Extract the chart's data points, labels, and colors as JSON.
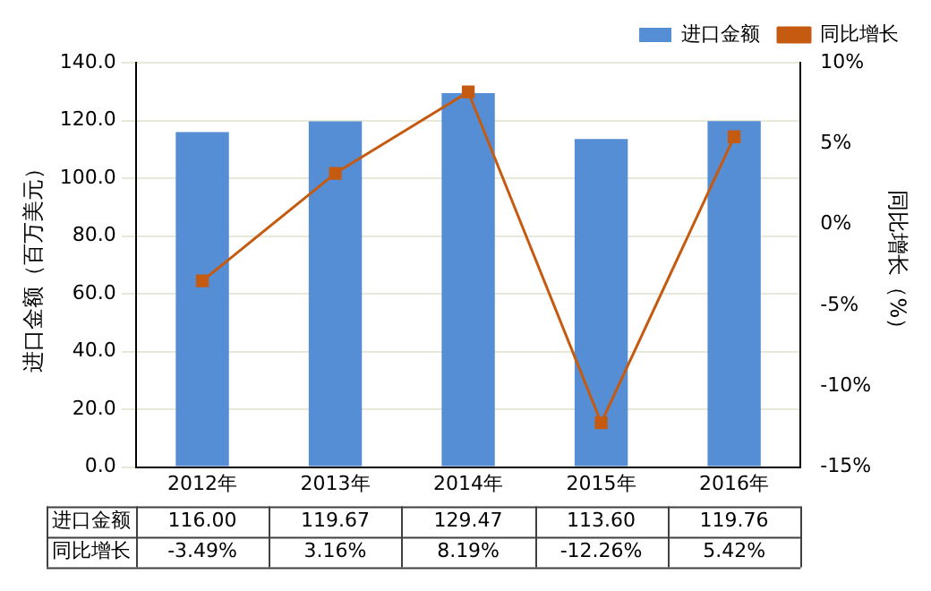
{
  "chart_data": {
    "type": "bar",
    "ylabel": "进口金额（百万美元）",
    "y2label": "同比增长（%）",
    "categories": [
      "2012年",
      "2013年",
      "2014年",
      "2015年",
      "2016年"
    ],
    "series": [
      {
        "name": "进口金额",
        "color": "#558ed5",
        "values": [
          116.0,
          119.67,
          129.47,
          113.6,
          119.76
        ],
        "value_labels": [
          "116.00",
          "119.67",
          "129.47",
          "113.60",
          "119.76"
        ]
      },
      {
        "name": "同比增长",
        "type": "line",
        "axis": "y2",
        "color": "#c55a11",
        "marker": "square",
        "values": [
          -3.49,
          3.16,
          8.19,
          -12.26,
          5.42
        ],
        "value_labels": [
          "-3.49%",
          "3.16%",
          "8.19%",
          "-12.26%",
          "5.42%"
        ]
      }
    ],
    "ylim": [
      0,
      140
    ],
    "yticks": [
      {
        "value": 0,
        "label": "0.0"
      },
      {
        "value": 20,
        "label": "20.0"
      },
      {
        "value": 40,
        "label": "40.0"
      },
      {
        "value": 60,
        "label": "60.0"
      },
      {
        "value": 80,
        "label": "80.0"
      },
      {
        "value": 100,
        "label": "100.0"
      },
      {
        "value": 120,
        "label": "120.0"
      },
      {
        "value": 140,
        "label": "140.0"
      }
    ],
    "y2lim": [
      -15,
      10
    ],
    "y2ticks": [
      {
        "value": -15,
        "label": "-15%"
      },
      {
        "value": -10,
        "label": "-10%"
      },
      {
        "value": -5,
        "label": "-5%"
      },
      {
        "value": 0,
        "label": "0%"
      },
      {
        "value": 5,
        "label": "5%"
      },
      {
        "value": 10,
        "label": "10%"
      }
    ],
    "grid": "y",
    "legend": "top right"
  }
}
